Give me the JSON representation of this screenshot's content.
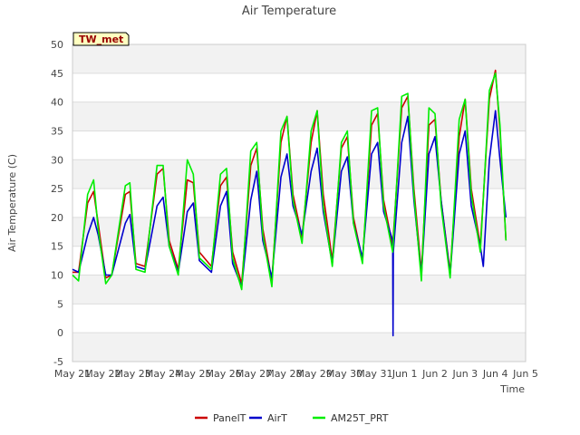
{
  "chart_data": {
    "type": "line",
    "title": "Air Temperature",
    "xlabel": "Time",
    "ylabel": "Air Temperature (C)",
    "ylim": [
      -5,
      50
    ],
    "xlim": [
      0,
      15
    ],
    "yticks": [
      -5,
      0,
      5,
      10,
      15,
      20,
      25,
      30,
      35,
      40,
      45,
      50
    ],
    "xtick_labels": [
      "May 21",
      "May 22",
      "May 23",
      "May 24",
      "May 25",
      "May 26",
      "May 27",
      "May 28",
      "May 29",
      "May 30",
      "May 31",
      "Jun 1",
      "Jun 2",
      "Jun 3",
      "Jun 4",
      "Jun 5"
    ],
    "station_label": "TW_met",
    "grid": true,
    "legend_position": "bottom",
    "series": [
      {
        "name": "PanelT",
        "color": "#cc0000",
        "points": [
          [
            0.0,
            10.5
          ],
          [
            0.2,
            10.5
          ],
          [
            0.5,
            22.5
          ],
          [
            0.7,
            24.5
          ],
          [
            0.85,
            19
          ],
          [
            1.1,
            9.5
          ],
          [
            1.3,
            10
          ],
          [
            1.75,
            24
          ],
          [
            1.9,
            24.5
          ],
          [
            2.1,
            12
          ],
          [
            2.4,
            11.5
          ],
          [
            2.8,
            27.5
          ],
          [
            3.0,
            28.5
          ],
          [
            3.2,
            16
          ],
          [
            3.5,
            11
          ],
          [
            3.8,
            26.5
          ],
          [
            4.0,
            26
          ],
          [
            4.2,
            14
          ],
          [
            4.6,
            11.5
          ],
          [
            4.9,
            25.5
          ],
          [
            5.1,
            27
          ],
          [
            5.3,
            14
          ],
          [
            5.6,
            8.5
          ],
          [
            5.9,
            29
          ],
          [
            6.1,
            32
          ],
          [
            6.3,
            18
          ],
          [
            6.6,
            9
          ],
          [
            6.9,
            33
          ],
          [
            7.1,
            37.5
          ],
          [
            7.3,
            24
          ],
          [
            7.6,
            16.5
          ],
          [
            7.9,
            33
          ],
          [
            8.1,
            38.5
          ],
          [
            8.3,
            24
          ],
          [
            8.6,
            12.5
          ],
          [
            8.9,
            32
          ],
          [
            9.1,
            34
          ],
          [
            9.3,
            20
          ],
          [
            9.6,
            12.5
          ],
          [
            9.9,
            36
          ],
          [
            10.1,
            38
          ],
          [
            10.3,
            23
          ],
          [
            10.6,
            15
          ],
          [
            10.9,
            39
          ],
          [
            11.1,
            41
          ],
          [
            11.3,
            25
          ],
          [
            11.55,
            10.5
          ],
          [
            11.8,
            36
          ],
          [
            12.0,
            37
          ],
          [
            12.2,
            23
          ],
          [
            12.5,
            10.5
          ],
          [
            12.8,
            34
          ],
          [
            13.0,
            40.5
          ],
          [
            13.2,
            25
          ],
          [
            13.5,
            15
          ],
          [
            13.8,
            40.5
          ],
          [
            14.0,
            45.5
          ],
          [
            14.15,
            35
          ],
          [
            14.35,
            16
          ]
        ]
      },
      {
        "name": "AirT",
        "color": "#0000cc",
        "points": [
          [
            0.0,
            11
          ],
          [
            0.2,
            10.5
          ],
          [
            0.5,
            17
          ],
          [
            0.7,
            20
          ],
          [
            0.85,
            17
          ],
          [
            1.1,
            10
          ],
          [
            1.3,
            10
          ],
          [
            1.75,
            19
          ],
          [
            1.9,
            20.5
          ],
          [
            2.1,
            11.5
          ],
          [
            2.4,
            11
          ],
          [
            2.8,
            22
          ],
          [
            3.0,
            23.5
          ],
          [
            3.2,
            15
          ],
          [
            3.5,
            10.5
          ],
          [
            3.8,
            21
          ],
          [
            4.0,
            22.5
          ],
          [
            4.2,
            12.5
          ],
          [
            4.6,
            10.5
          ],
          [
            4.9,
            22
          ],
          [
            5.1,
            24.5
          ],
          [
            5.3,
            12
          ],
          [
            5.6,
            8
          ],
          [
            5.9,
            23
          ],
          [
            6.1,
            28
          ],
          [
            6.3,
            16
          ],
          [
            6.6,
            9.5
          ],
          [
            6.9,
            27
          ],
          [
            7.1,
            31
          ],
          [
            7.3,
            22
          ],
          [
            7.6,
            17
          ],
          [
            7.9,
            28
          ],
          [
            8.1,
            32
          ],
          [
            8.3,
            21
          ],
          [
            8.6,
            12
          ],
          [
            8.9,
            28
          ],
          [
            9.1,
            30.5
          ],
          [
            9.3,
            19
          ],
          [
            9.6,
            13
          ],
          [
            9.9,
            31
          ],
          [
            10.1,
            33
          ],
          [
            10.3,
            21
          ],
          [
            10.6,
            16
          ],
          [
            10.61,
            -0.5
          ],
          [
            10.62,
            14
          ],
          [
            10.9,
            33
          ],
          [
            11.1,
            37.5
          ],
          [
            11.3,
            23
          ],
          [
            11.55,
            10
          ],
          [
            11.8,
            31
          ],
          [
            12.0,
            34
          ],
          [
            12.2,
            23
          ],
          [
            12.5,
            10
          ],
          [
            12.8,
            31
          ],
          [
            13.0,
            35
          ],
          [
            13.2,
            22
          ],
          [
            13.5,
            15
          ],
          [
            13.6,
            11.5
          ],
          [
            13.8,
            30
          ],
          [
            14.0,
            38.5
          ],
          [
            14.15,
            30
          ],
          [
            14.35,
            20
          ]
        ]
      },
      {
        "name": "AM25T_PRT",
        "color": "#00ee00",
        "points": [
          [
            0.0,
            10
          ],
          [
            0.2,
            9
          ],
          [
            0.5,
            24
          ],
          [
            0.7,
            26.5
          ],
          [
            0.85,
            18
          ],
          [
            1.1,
            8.5
          ],
          [
            1.3,
            10
          ],
          [
            1.75,
            25.5
          ],
          [
            1.9,
            26
          ],
          [
            2.1,
            11
          ],
          [
            2.4,
            10.5
          ],
          [
            2.8,
            29
          ],
          [
            3.0,
            29
          ],
          [
            3.2,
            15
          ],
          [
            3.5,
            10
          ],
          [
            3.8,
            30
          ],
          [
            4.0,
            27.5
          ],
          [
            4.2,
            13
          ],
          [
            4.6,
            11
          ],
          [
            4.9,
            27.5
          ],
          [
            5.1,
            28.5
          ],
          [
            5.3,
            13
          ],
          [
            5.6,
            7.5
          ],
          [
            5.9,
            31.5
          ],
          [
            6.1,
            33
          ],
          [
            6.3,
            17
          ],
          [
            6.6,
            8
          ],
          [
            6.9,
            35
          ],
          [
            7.1,
            37.5
          ],
          [
            7.3,
            23
          ],
          [
            7.6,
            15.5
          ],
          [
            7.9,
            35
          ],
          [
            8.1,
            38.5
          ],
          [
            8.3,
            22
          ],
          [
            8.6,
            11.5
          ],
          [
            8.9,
            33
          ],
          [
            9.1,
            35
          ],
          [
            9.3,
            19
          ],
          [
            9.6,
            12
          ],
          [
            9.9,
            38.5
          ],
          [
            10.1,
            39
          ],
          [
            10.3,
            22
          ],
          [
            10.6,
            14
          ],
          [
            10.9,
            41
          ],
          [
            11.1,
            41.5
          ],
          [
            11.3,
            24
          ],
          [
            11.55,
            9
          ],
          [
            11.8,
            39
          ],
          [
            12.0,
            38
          ],
          [
            12.2,
            22
          ],
          [
            12.5,
            9.5
          ],
          [
            12.8,
            37
          ],
          [
            13.0,
            40.5
          ],
          [
            13.2,
            24
          ],
          [
            13.5,
            14
          ],
          [
            13.8,
            42
          ],
          [
            14.0,
            45
          ],
          [
            14.15,
            36
          ],
          [
            14.35,
            16
          ]
        ]
      }
    ]
  }
}
